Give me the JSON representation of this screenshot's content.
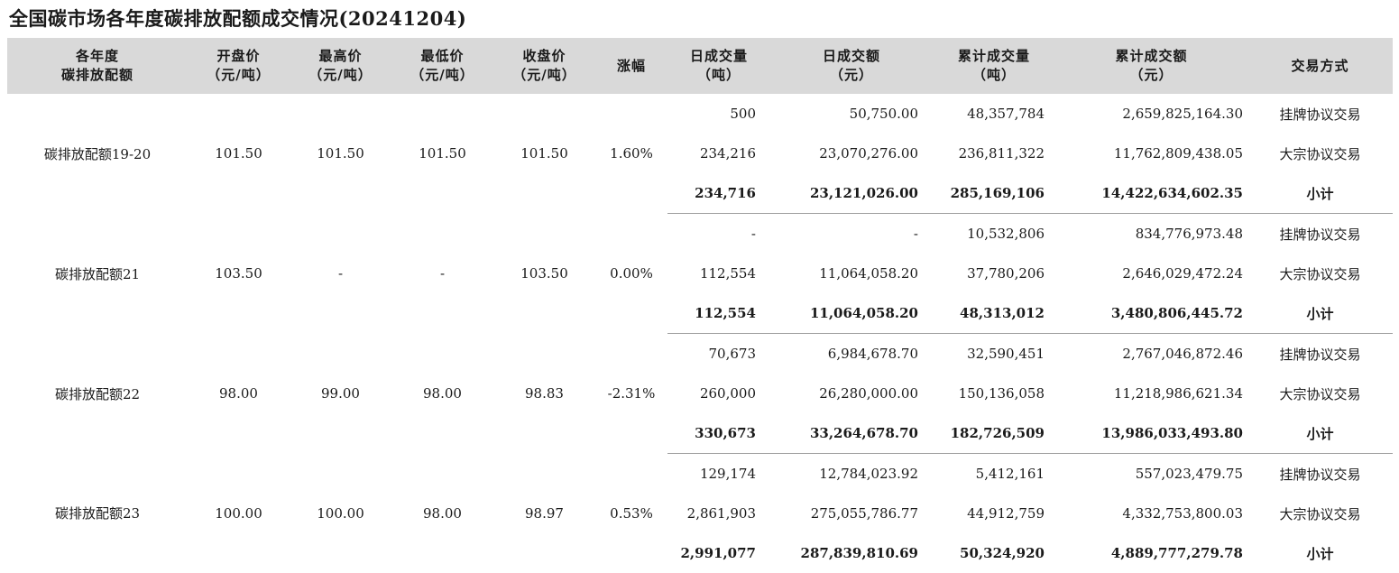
{
  "title": "全国碳市场各年度碳排放配额成交情况(20241204)",
  "headers": [
    [
      "各年度",
      "碳排放配额"
    ],
    [
      "开盘价",
      "（元/吨）"
    ],
    [
      "最高价",
      "（元/吨）"
    ],
    [
      "最低价",
      "（元/吨）"
    ],
    [
      "收盘价",
      "（元/吨）"
    ],
    [
      "涨幅",
      ""
    ],
    [
      "日成交量",
      "（吨）"
    ],
    [
      "日成交额",
      "（元）"
    ],
    [
      "累计成交量",
      "（吨）"
    ],
    [
      "累计成交额",
      "（元）"
    ],
    [
      "交易方式",
      ""
    ]
  ],
  "groups": [
    {
      "name": "碳排放配额19-20",
      "open": "101.50",
      "high": "101.50",
      "low": "101.50",
      "close": "101.50",
      "change": "1.60%",
      "rows": [
        {
          "daily_volume": "500",
          "daily_amount": "50,750.00",
          "cum_volume": "48,357,784",
          "cum_amount": "2,659,825,164.30",
          "method": "挂牌协议交易"
        },
        {
          "daily_volume": "234,216",
          "daily_amount": "23,070,276.00",
          "cum_volume": "236,811,322",
          "cum_amount": "11,762,809,438.05",
          "method": "大宗协议交易"
        },
        {
          "daily_volume": "234,716",
          "daily_amount": "23,121,026.00",
          "cum_volume": "285,169,106",
          "cum_amount": "14,422,634,602.35",
          "method": "小计"
        }
      ]
    },
    {
      "name": "碳排放配额21",
      "open": "103.50",
      "high": "-",
      "low": "-",
      "close": "103.50",
      "change": "0.00%",
      "rows": [
        {
          "daily_volume": "-",
          "daily_amount": "-",
          "cum_volume": "10,532,806",
          "cum_amount": "834,776,973.48",
          "method": "挂牌协议交易"
        },
        {
          "daily_volume": "112,554",
          "daily_amount": "11,064,058.20",
          "cum_volume": "37,780,206",
          "cum_amount": "2,646,029,472.24",
          "method": "大宗协议交易"
        },
        {
          "daily_volume": "112,554",
          "daily_amount": "11,064,058.20",
          "cum_volume": "48,313,012",
          "cum_amount": "3,480,806,445.72",
          "method": "小计"
        }
      ]
    },
    {
      "name": "碳排放配额22",
      "open": "98.00",
      "high": "99.00",
      "low": "98.00",
      "close": "98.83",
      "change": "-2.31%",
      "rows": [
        {
          "daily_volume": "70,673",
          "daily_amount": "6,984,678.70",
          "cum_volume": "32,590,451",
          "cum_amount": "2,767,046,872.46",
          "method": "挂牌协议交易"
        },
        {
          "daily_volume": "260,000",
          "daily_amount": "26,280,000.00",
          "cum_volume": "150,136,058",
          "cum_amount": "11,218,986,621.34",
          "method": "大宗协议交易"
        },
        {
          "daily_volume": "330,673",
          "daily_amount": "33,264,678.70",
          "cum_volume": "182,726,509",
          "cum_amount": "13,986,033,493.80",
          "method": "小计"
        }
      ]
    },
    {
      "name": "碳排放配额23",
      "open": "100.00",
      "high": "100.00",
      "low": "98.00",
      "close": "98.97",
      "change": "0.53%",
      "rows": [
        {
          "daily_volume": "129,174",
          "daily_amount": "12,784,023.92",
          "cum_volume": "5,412,161",
          "cum_amount": "557,023,479.75",
          "method": "挂牌协议交易"
        },
        {
          "daily_volume": "2,861,903",
          "daily_amount": "275,055,786.77",
          "cum_volume": "44,912,759",
          "cum_amount": "4,332,753,800.03",
          "method": "大宗协议交易"
        },
        {
          "daily_volume": "2,991,077",
          "daily_amount": "287,839,810.69",
          "cum_volume": "50,324,920",
          "cum_amount": "4,889,777,279.78",
          "method": "小计"
        }
      ]
    }
  ]
}
